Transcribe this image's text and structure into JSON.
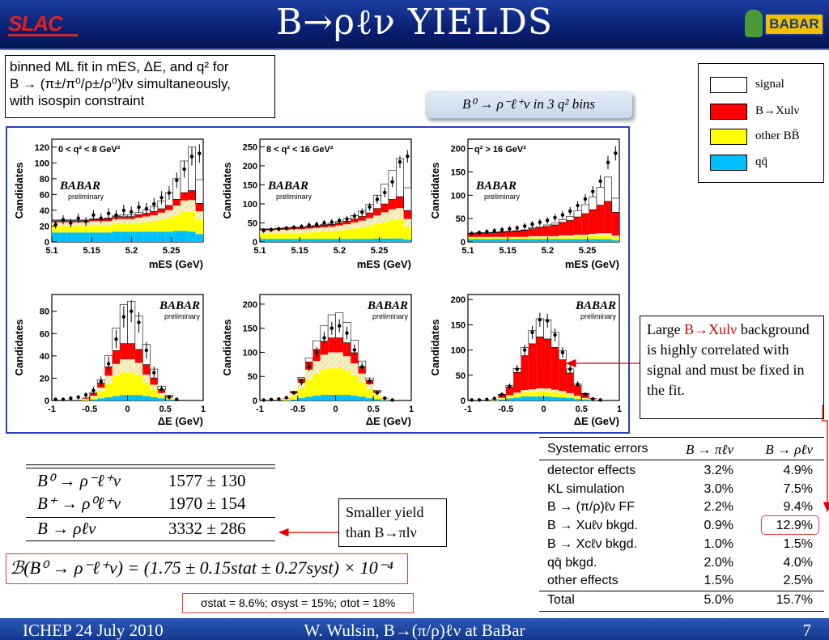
{
  "header": {
    "title": "B→ρℓν YIELDS",
    "left_logo": "SLAC",
    "right_logo": "BABAR"
  },
  "footer": {
    "left": "ICHEP 24 July 2010",
    "center": "W. Wulsin, B→(π/ρ)ℓν at BaBar",
    "page": "7"
  },
  "description": {
    "line1": "binned ML fit in mES, ΔE, and q² for",
    "line2": "B → (π±/π⁰/ρ±/ρ⁰)ℓν simultaneously,",
    "line3": "with isospin constraint"
  },
  "bins_label": "B⁰ → ρ⁻ℓ⁺ν  in 3 q² bins",
  "legend": [
    {
      "label": "signal",
      "color": "#ffffff"
    },
    {
      "label": "B→Xulν",
      "color": "#ff0000"
    },
    {
      "label": "other BB̄",
      "color": "#ffff00"
    },
    {
      "label": "qq̄",
      "color": "#00bfff"
    }
  ],
  "colors": {
    "signal": "#ffffff",
    "bxulv": "#ff0000",
    "otherbb": "#ffff00",
    "qq": "#00bfff",
    "hatch": "#f6f0c0",
    "frame": "#2a3fcc",
    "accent_red": "#e00000"
  },
  "plots": {
    "brand": "BABAR",
    "preliminary": "preliminary",
    "ylabel": "Candidates",
    "mes_xlabel": "mES (GeV)",
    "de_xlabel": "ΔE (GeV)",
    "mes_ticks": [
      "5.1",
      "5.15",
      "5.2",
      "5.25"
    ],
    "de_ticks": [
      "-1",
      "-0.5",
      "0",
      "0.5",
      "1"
    ],
    "q2_bins": [
      "0 < q² < 8 GeV²",
      "8 < q² < 16 GeV²",
      "q² > 16 GeV²"
    ],
    "yticks": [
      [
        "0",
        "20",
        "40",
        "60",
        "80",
        "100",
        "120"
      ],
      [
        "0",
        "50",
        "100",
        "150",
        "200",
        "250"
      ],
      [
        "0",
        "50",
        "100",
        "150",
        "200"
      ],
      [
        "0",
        "20",
        "40",
        "60",
        "80"
      ],
      [
        "0",
        "50",
        "100",
        "150",
        "200"
      ],
      [
        "0",
        "50",
        "100",
        "150",
        "200"
      ]
    ]
  },
  "chart_data": [
    {
      "type": "bar",
      "panel": "mES, 0<q²<8",
      "ylim": [
        0,
        130
      ],
      "xlim": [
        5.1,
        5.29
      ],
      "qq": [
        12,
        12,
        12,
        12,
        12,
        12,
        12,
        12,
        13,
        13,
        13,
        13,
        13,
        13,
        13,
        13,
        14,
        14,
        13,
        10
      ],
      "otherbb": [
        8,
        8,
        8,
        8,
        8,
        9,
        9,
        9,
        10,
        10,
        10,
        11,
        12,
        13,
        15,
        17,
        20,
        24,
        25,
        18
      ],
      "bxulv": [
        2,
        2,
        2,
        2,
        2,
        2,
        2,
        3,
        3,
        3,
        3,
        4,
        4,
        5,
        5,
        6,
        8,
        10,
        12,
        10
      ],
      "signal": [
        1,
        1,
        1,
        1,
        1,
        1,
        1,
        1,
        1,
        2,
        2,
        3,
        4,
        6,
        10,
        16,
        26,
        40,
        55,
        30
      ],
      "points": [
        22,
        28,
        24,
        30,
        26,
        34,
        30,
        36,
        34,
        40,
        38,
        44,
        42,
        48,
        56,
        62,
        78,
        92,
        108,
        112
      ]
    },
    {
      "type": "bar",
      "panel": "mES, 8<q²<16",
      "ylim": [
        0,
        270
      ],
      "xlim": [
        5.1,
        5.29
      ],
      "qq": [
        8,
        8,
        8,
        8,
        8,
        8,
        8,
        8,
        8,
        8,
        8,
        8,
        8,
        8,
        8,
        9,
        9,
        9,
        9,
        6
      ],
      "otherbb": [
        14,
        14,
        15,
        15,
        16,
        16,
        17,
        18,
        19,
        20,
        22,
        24,
        27,
        30,
        34,
        38,
        43,
        48,
        50,
        34
      ],
      "bxulv": [
        3,
        3,
        3,
        4,
        4,
        4,
        5,
        5,
        6,
        6,
        7,
        8,
        9,
        11,
        14,
        18,
        22,
        26,
        30,
        22
      ],
      "signal": [
        1,
        1,
        1,
        1,
        1,
        1,
        1,
        2,
        2,
        3,
        4,
        6,
        9,
        14,
        22,
        34,
        52,
        76,
        100,
        60
      ],
      "points": [
        30,
        32,
        34,
        36,
        38,
        40,
        44,
        46,
        50,
        52,
        56,
        60,
        68,
        78,
        92,
        112,
        130,
        158,
        210,
        225
      ]
    },
    {
      "type": "bar",
      "panel": "mES, q²>16",
      "ylim": [
        0,
        220
      ],
      "xlim": [
        5.1,
        5.29
      ],
      "qq": [
        6,
        6,
        6,
        6,
        6,
        6,
        6,
        6,
        6,
        6,
        6,
        6,
        6,
        6,
        6,
        6,
        6,
        6,
        6,
        4
      ],
      "otherbb": [
        3,
        3,
        3,
        3,
        3,
        3,
        3,
        3,
        4,
        4,
        4,
        4,
        5,
        5,
        6,
        6,
        7,
        8,
        8,
        6
      ],
      "bxulv": [
        7,
        8,
        8,
        9,
        10,
        11,
        12,
        14,
        16,
        18,
        21,
        24,
        28,
        32,
        38,
        45,
        52,
        60,
        68,
        50
      ],
      "signal": [
        1,
        1,
        1,
        1,
        1,
        1,
        1,
        1,
        2,
        2,
        3,
        4,
        6,
        9,
        13,
        19,
        27,
        38,
        52,
        30
      ],
      "points": [
        18,
        20,
        22,
        24,
        26,
        28,
        30,
        34,
        38,
        42,
        46,
        52,
        58,
        66,
        78,
        92,
        108,
        130,
        170,
        190
      ]
    },
    {
      "type": "bar",
      "panel": "ΔE, 0<q²<8",
      "ylim": [
        0,
        95
      ],
      "xlim": [
        -1,
        1
      ],
      "qq": [
        0,
        0,
        0,
        0,
        0,
        1,
        2,
        3,
        4,
        5,
        5,
        5,
        4,
        3,
        2,
        1,
        0,
        0,
        0,
        0
      ],
      "otherbb": [
        0,
        0,
        0,
        0,
        1,
        2,
        6,
        12,
        18,
        20,
        20,
        18,
        12,
        7,
        3,
        1,
        0,
        0,
        0,
        0
      ],
      "bxulv": [
        0,
        0,
        0,
        0,
        1,
        2,
        4,
        8,
        12,
        14,
        14,
        12,
        9,
        6,
        3,
        1,
        0,
        0,
        0,
        0
      ],
      "signal": [
        0,
        0,
        0,
        0,
        0,
        1,
        3,
        10,
        20,
        35,
        38,
        30,
        18,
        8,
        3,
        1,
        0,
        0,
        0,
        0
      ],
      "points": [
        1,
        1,
        2,
        3,
        5,
        9,
        17,
        33,
        55,
        75,
        80,
        70,
        45,
        25,
        10,
        3,
        1,
        0,
        0,
        0
      ]
    },
    {
      "type": "bar",
      "panel": "ΔE, 8<q²<16",
      "ylim": [
        0,
        220
      ],
      "xlim": [
        -1,
        1
      ],
      "qq": [
        0,
        0,
        0,
        0,
        2,
        5,
        8,
        10,
        12,
        12,
        12,
        12,
        10,
        8,
        5,
        3,
        1,
        0,
        0,
        0
      ],
      "otherbb": [
        0,
        0,
        0,
        2,
        8,
        20,
        35,
        45,
        52,
        55,
        55,
        50,
        42,
        30,
        18,
        8,
        2,
        0,
        0,
        0
      ],
      "bxulv": [
        0,
        0,
        0,
        1,
        3,
        8,
        16,
        24,
        28,
        30,
        30,
        28,
        22,
        14,
        8,
        3,
        1,
        0,
        0,
        0
      ],
      "signal": [
        0,
        0,
        0,
        0,
        1,
        3,
        8,
        18,
        32,
        48,
        52,
        42,
        26,
        12,
        5,
        2,
        0,
        0,
        0,
        0
      ],
      "points": [
        1,
        2,
        3,
        6,
        16,
        38,
        70,
        100,
        130,
        150,
        155,
        140,
        105,
        70,
        40,
        16,
        5,
        1,
        0,
        0
      ]
    },
    {
      "type": "bar",
      "panel": "ΔE, q²>16",
      "ylim": [
        0,
        210
      ],
      "xlim": [
        -1,
        1
      ],
      "qq": [
        0,
        0,
        0,
        0,
        2,
        4,
        6,
        8,
        8,
        8,
        8,
        7,
        6,
        5,
        3,
        2,
        1,
        0,
        0,
        0
      ],
      "otherbb": [
        0,
        0,
        0,
        1,
        2,
        4,
        6,
        8,
        9,
        10,
        10,
        9,
        8,
        6,
        4,
        2,
        1,
        0,
        0,
        0
      ],
      "bxulv": [
        0,
        0,
        0,
        1,
        6,
        16,
        40,
        68,
        90,
        102,
        98,
        84,
        62,
        40,
        20,
        8,
        2,
        0,
        0,
        0
      ],
      "signal": [
        0,
        0,
        0,
        0,
        1,
        3,
        8,
        16,
        26,
        36,
        38,
        30,
        18,
        8,
        3,
        1,
        0,
        0,
        0,
        0
      ],
      "points": [
        1,
        1,
        2,
        4,
        12,
        28,
        62,
        100,
        135,
        160,
        158,
        130,
        95,
        62,
        32,
        12,
        3,
        1,
        0,
        0
      ]
    }
  ],
  "callout_fixed": {
    "pre": "Large ",
    "red": "B→Xulν",
    "rest": "background is highly correlated with signal and must be fixed in the fit."
  },
  "callout_yield": {
    "line1": "Smaller yield",
    "line2": "than B→πlν"
  },
  "yields": [
    {
      "decay": "B⁰ → ρ⁻ℓ⁺ν",
      "value": "1577 ± 130"
    },
    {
      "decay": "B⁺ → ρ⁰ℓ⁺ν",
      "value": "1970 ± 154"
    },
    {
      "decay": "B → ρℓν",
      "value": "3332 ± 286"
    }
  ],
  "branching_fraction": "ℬ(B⁰ → ρ⁻ℓ⁺ν) = (1.75 ± 0.15stat ± 0.27syst) × 10⁻⁴",
  "sigma_line": "σstat = 8.6%;  σsyst = 15%;  σtot = 18%",
  "systematics": {
    "header": [
      "Systematic errors",
      "B → πℓν",
      "B → ρℓν"
    ],
    "rows": [
      [
        "detector effects",
        "3.2%",
        "4.9%"
      ],
      [
        "KL simulation",
        "3.0%",
        "7.5%"
      ],
      [
        "B → (π/ρ)ℓν FF",
        "2.2%",
        "9.4%"
      ],
      [
        "B → Xuℓν bkgd.",
        "0.9%",
        "12.9%"
      ],
      [
        "B → Xcℓν bkgd.",
        "1.0%",
        "1.5%"
      ],
      [
        "qq̄ bkgd.",
        "2.0%",
        "4.0%"
      ],
      [
        "other effects",
        "1.5%",
        "2.5%"
      ]
    ],
    "total": [
      "Total",
      "5.0%",
      "15.7%"
    ]
  }
}
